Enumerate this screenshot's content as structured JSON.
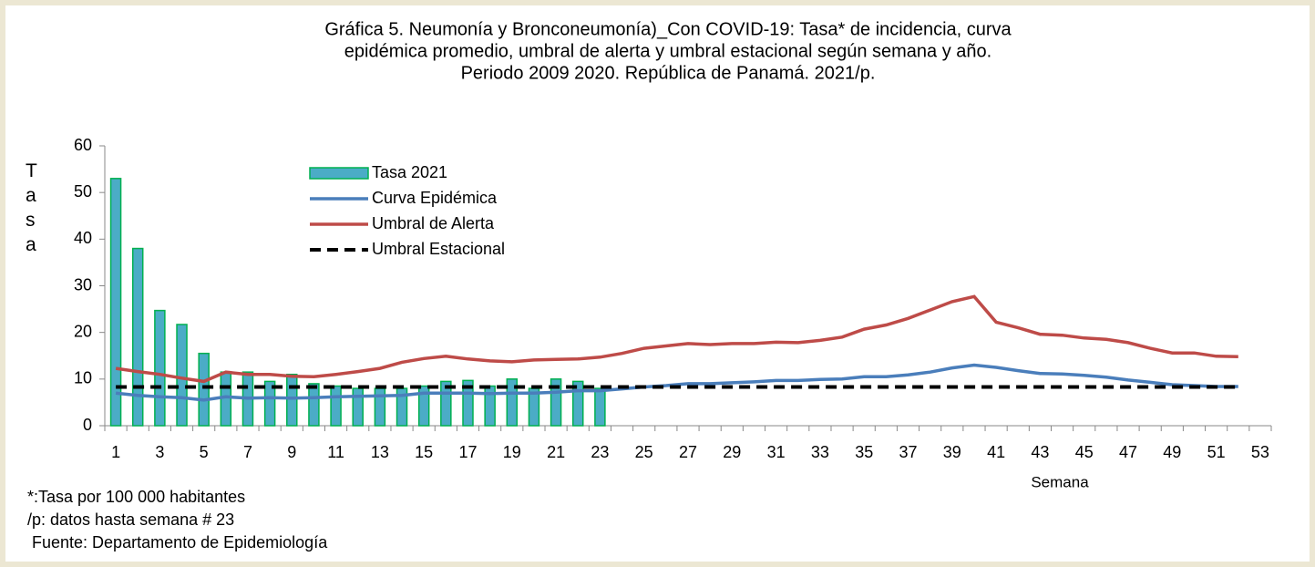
{
  "chart_data": {
    "type": "bar-line",
    "title": [
      "Gráfica 5. Neumonía y Bronconeumonía)_Con COVID-19: Tasa* de incidencia, curva",
      "epidémica promedio, umbral de alerta  y umbral estacional según semana y año.",
      "Periodo 2009 2020.  República de Panamá. 2021/p."
    ],
    "y_label": "Tasa",
    "x_label": "Semana",
    "notes": [
      "*:Tasa por 100 000 habitantes",
      "/p: datos hasta semana # 23",
      " Fuente: Departamento de Epidemiología"
    ],
    "categories": [
      1,
      null,
      3,
      null,
      5,
      null,
      7,
      null,
      9,
      null,
      11,
      null,
      13,
      null,
      15,
      null,
      17,
      null,
      19,
      null,
      21,
      null,
      23,
      null,
      25,
      null,
      27,
      null,
      29,
      null,
      31,
      null,
      33,
      null,
      35,
      null,
      37,
      null,
      39,
      null,
      41,
      null,
      43,
      null,
      45,
      null,
      47,
      null,
      49,
      null,
      51,
      null,
      53
    ],
    "series": [
      {
        "name": "Tasa 2021",
        "type": "bar",
        "color": "#4bacc6",
        "edge": "#00b050",
        "values": [
          53,
          38,
          24.7,
          21.7,
          15.5,
          11.5,
          11.5,
          9.5,
          11,
          9,
          8.5,
          8,
          8,
          8,
          8.5,
          9.5,
          9.7,
          8.5,
          10,
          8,
          10,
          9.5,
          8,
          null,
          null,
          null,
          null,
          null,
          null,
          null,
          null,
          null,
          null,
          null,
          null,
          null,
          null,
          null,
          null,
          null,
          null,
          null,
          null,
          null,
          null,
          null,
          null,
          null,
          null,
          null,
          null,
          null,
          null
        ]
      },
      {
        "name": "Curva Epidémica",
        "type": "line",
        "color": "#4a7ebb",
        "values": [
          7,
          6.5,
          6.2,
          6,
          5.5,
          6.2,
          5.9,
          6,
          5.9,
          6,
          6.2,
          6.3,
          6.4,
          6.5,
          7,
          7,
          7,
          6.9,
          7,
          7,
          7.2,
          7.5,
          7.5,
          7.9,
          8.3,
          8.6,
          9,
          9,
          9.2,
          9.4,
          9.7,
          9.7,
          9.9,
          10,
          10.5,
          10.5,
          10.9,
          11.5,
          12.4,
          13,
          12.5,
          11.8,
          11.2,
          11.1,
          10.8,
          10.4,
          9.8,
          9.3,
          8.8,
          8.6,
          8.4,
          8.4,
          null
        ]
      },
      {
        "name": "Umbral de Alerta",
        "type": "line",
        "color": "#be4b48",
        "values": [
          12.3,
          11.6,
          11,
          10.2,
          9.5,
          11.5,
          11,
          11,
          10.6,
          10.5,
          11,
          11.6,
          12.3,
          13.6,
          14.4,
          14.9,
          14.3,
          13.9,
          13.7,
          14.1,
          14.2,
          14.3,
          14.7,
          15.5,
          16.6,
          17.1,
          17.6,
          17.4,
          17.6,
          17.6,
          17.9,
          17.8,
          18.3,
          19,
          20.7,
          21.6,
          23,
          24.8,
          26.6,
          27.7,
          22.2,
          21,
          19.6,
          19.4,
          18.8,
          18.5,
          17.8,
          16.6,
          15.6,
          15.6,
          14.9,
          14.8,
          null
        ]
      },
      {
        "name": "Umbral Estacional",
        "type": "line",
        "dash": true,
        "color": "#000000",
        "values": [
          8.3,
          8.3,
          8.3,
          8.3,
          8.3,
          8.3,
          8.3,
          8.3,
          8.3,
          8.3,
          8.3,
          8.3,
          8.3,
          8.3,
          8.3,
          8.3,
          8.3,
          8.3,
          8.3,
          8.3,
          8.3,
          8.3,
          8.3,
          8.3,
          8.3,
          8.3,
          8.3,
          8.3,
          8.3,
          8.3,
          8.3,
          8.3,
          8.3,
          8.3,
          8.3,
          8.3,
          8.3,
          8.3,
          8.3,
          8.3,
          8.3,
          8.3,
          8.3,
          8.3,
          8.3,
          8.3,
          8.3,
          8.3,
          8.3,
          8.3,
          8.3,
          8.3,
          null
        ]
      }
    ],
    "ylim": [
      0,
      60
    ],
    "yticks": [
      0,
      10,
      20,
      30,
      40,
      50,
      60
    ],
    "grid": false
  }
}
